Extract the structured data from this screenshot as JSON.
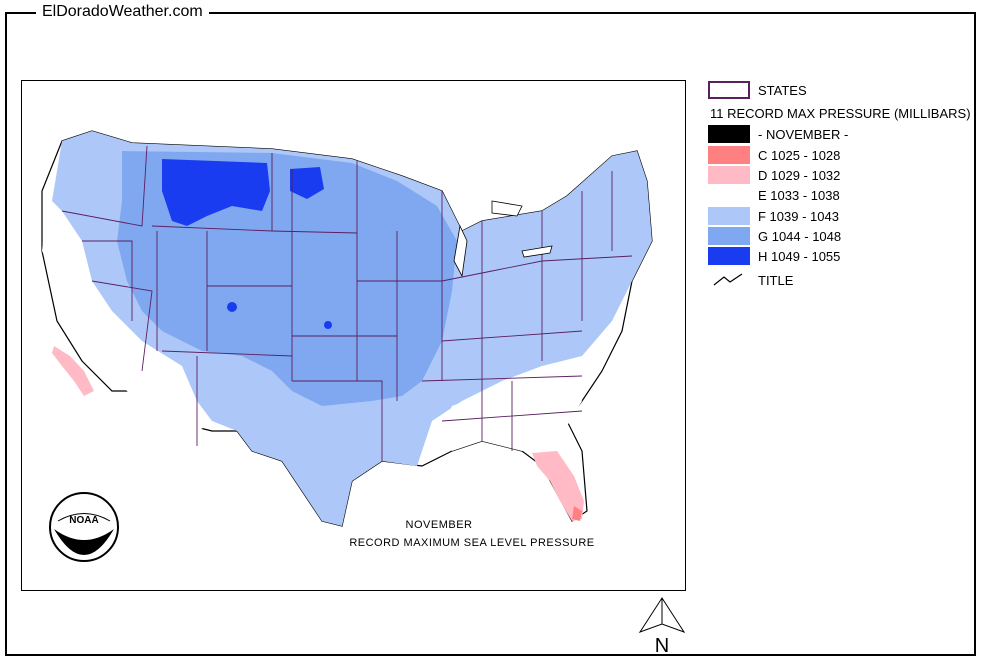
{
  "site": {
    "title": "ElDoradoWeather.com"
  },
  "map": {
    "caption_line1": "NOVEMBER",
    "caption_line2": "RECORD MAXIMUM SEA LEVEL PRESSURE",
    "logo": "noaa-logo",
    "logo_text": "NOAA",
    "north_label": "N"
  },
  "legend": {
    "states_label": "STATES",
    "layer_title": "11 RECORD MAX PRESSURE (MILLIBARS)",
    "month_label": "- NOVEMBER -",
    "month_color": "#000000",
    "classes": [
      {
        "label": "C 1025 - 1028",
        "color": "#ff8080"
      },
      {
        "label": "D 1029 - 1032",
        "color": "#ffbac6"
      },
      {
        "label": "E 1033 - 1038",
        "color": "#ffffff"
      },
      {
        "label": "F 1039 - 1043",
        "color": "#adc8f8"
      },
      {
        "label": "G 1044 - 1048",
        "color": "#80a8f0"
      },
      {
        "label": "H 1049 - 1055",
        "color": "#1a3cf0"
      }
    ],
    "title_label": "TITLE"
  },
  "colors": {
    "state_border": "#5a1f5f",
    "frame": "#000000"
  }
}
